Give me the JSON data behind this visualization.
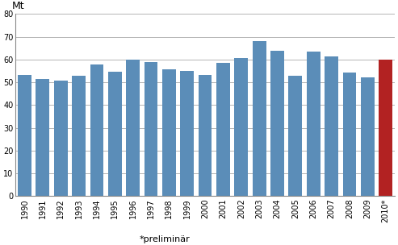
{
  "categories": [
    "1990",
    "1991",
    "1992",
    "1993",
    "1994",
    "1995",
    "1996",
    "1997",
    "1998",
    "1999",
    "2000",
    "2001",
    "2002",
    "2003",
    "2004",
    "2005",
    "2006",
    "2007",
    "2008",
    "2009",
    "2010*"
  ],
  "values": [
    53.3,
    51.5,
    50.8,
    52.8,
    57.9,
    54.7,
    60.0,
    58.9,
    55.7,
    55.0,
    53.3,
    58.5,
    60.8,
    68.0,
    63.9,
    52.8,
    63.5,
    61.5,
    54.1,
    52.0,
    60.0
  ],
  "bar_colors": [
    "#5b8db8",
    "#5b8db8",
    "#5b8db8",
    "#5b8db8",
    "#5b8db8",
    "#5b8db8",
    "#5b8db8",
    "#5b8db8",
    "#5b8db8",
    "#5b8db8",
    "#5b8db8",
    "#5b8db8",
    "#5b8db8",
    "#5b8db8",
    "#5b8db8",
    "#5b8db8",
    "#5b8db8",
    "#5b8db8",
    "#5b8db8",
    "#5b8db8",
    "#b22222"
  ],
  "mt_label": "Mt",
  "xlabel": "*preliminär",
  "ylim": [
    0,
    80
  ],
  "yticks": [
    0,
    10,
    20,
    30,
    40,
    50,
    60,
    70,
    80
  ],
  "background_color": "#ffffff",
  "plot_bg_color": "#ffffff",
  "grid_color": "#aaaaaa",
  "mt_fontsize": 9,
  "tick_fontsize": 7,
  "xlabel_fontsize": 8,
  "border_color": "#888888"
}
